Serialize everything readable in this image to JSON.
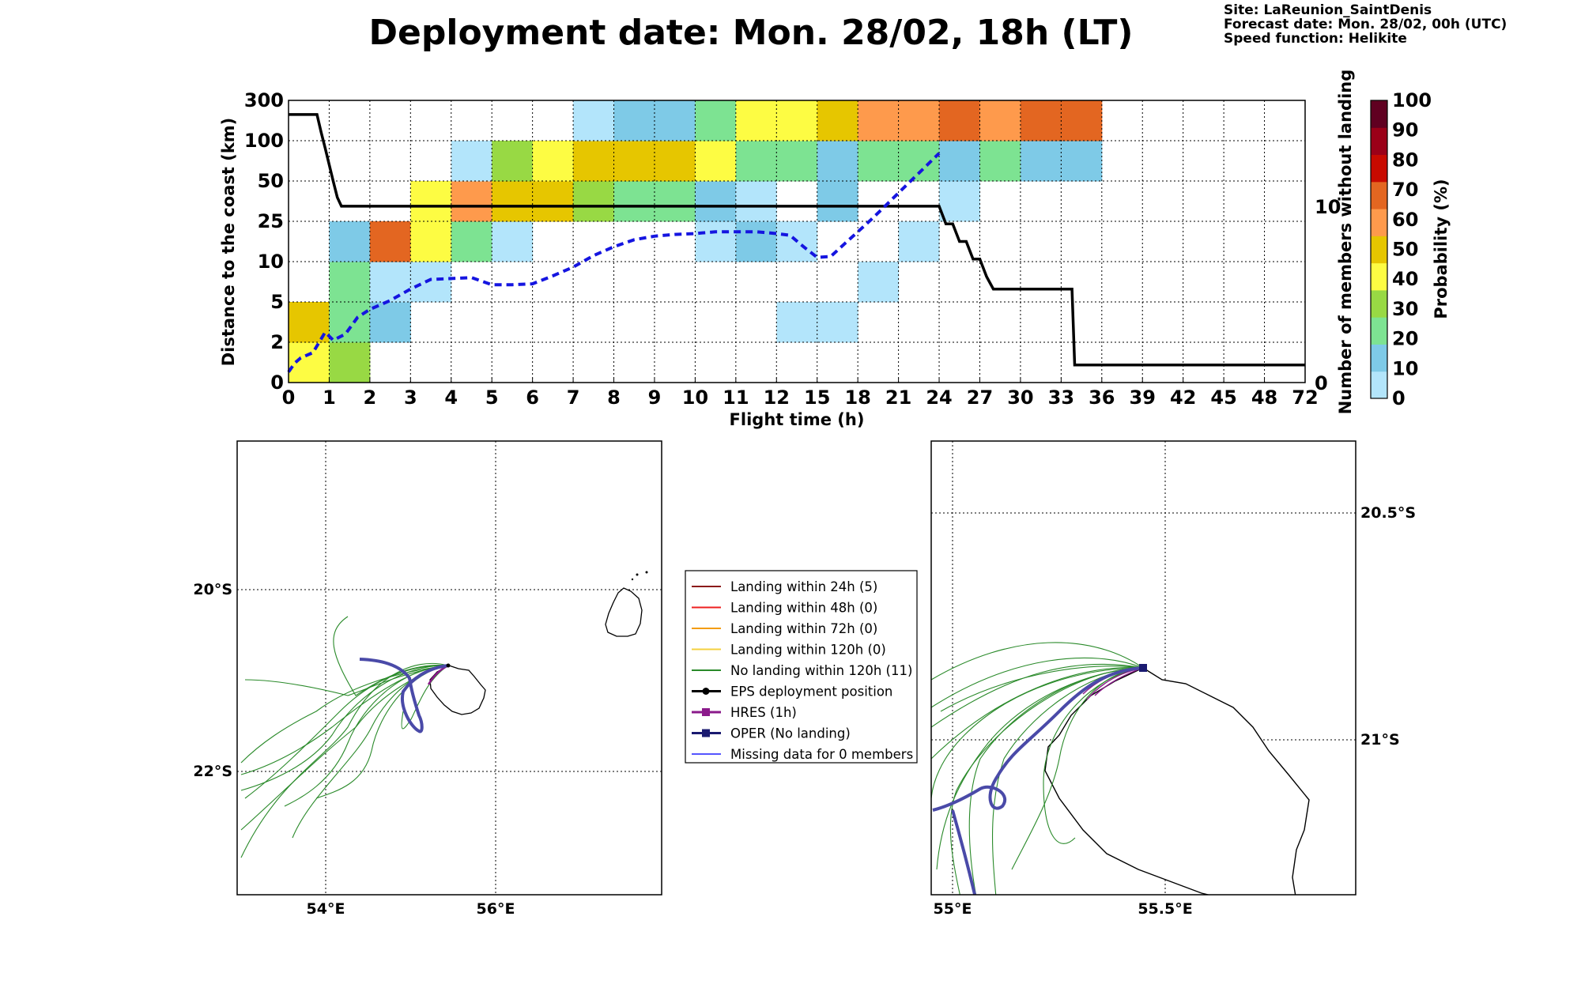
{
  "header": {
    "title": "Deployment date: Mon. 28/02, 18h (LT)",
    "site": "Site: LaReunion_SaintDenis",
    "forecast": "Forecast date: Mon. 28/02, 00h (UTC)",
    "speed": "Speed function: Helikite"
  },
  "chart_data": [
    {
      "type": "heatmap",
      "xlabel": "Flight time (h)",
      "ylabel": "Distance to the coast (km)",
      "y2label": "Number of members without landing",
      "colorbar_label": "Probability (%)",
      "x_ticks": [
        "0",
        "1",
        "2",
        "3",
        "4",
        "5",
        "6",
        "7",
        "8",
        "9",
        "10",
        "11",
        "12",
        "15",
        "18",
        "21",
        "24",
        "27",
        "30",
        "33",
        "36",
        "39",
        "42",
        "45",
        "48",
        "72"
      ],
      "y_ticks": [
        "0",
        "2",
        "5",
        "10",
        "25",
        "50",
        "100",
        "300"
      ],
      "y2_ticks": [
        "0",
        "10"
      ],
      "y2lim": [
        0,
        16
      ],
      "colorbar_ticks": [
        "0",
        "10",
        "20",
        "30",
        "40",
        "50",
        "60",
        "70",
        "80",
        "90",
        "100"
      ],
      "colorbar_colors": [
        "#b3e5fb",
        "#7ecae7",
        "#7de392",
        "#98d944",
        "#fdfc43",
        "#e6c600",
        "#fe9a4c",
        "#e36621",
        "#c80a00",
        "#9b0018",
        "#600021"
      ],
      "cells": [
        {
          "x": 0,
          "y": 0,
          "p": 40
        },
        {
          "x": 0,
          "y": 1,
          "p": 50
        },
        {
          "x": 1,
          "y": 0,
          "p": 30
        },
        {
          "x": 1,
          "y": 1,
          "p": 20
        },
        {
          "x": 1,
          "y": 2,
          "p": 20
        },
        {
          "x": 1,
          "y": 3,
          "p": 10
        },
        {
          "x": 2,
          "y": 1,
          "p": 10
        },
        {
          "x": 2,
          "y": 2,
          "p": 0
        },
        {
          "x": 2,
          "y": 3,
          "p": 70
        },
        {
          "x": 3,
          "y": 2,
          "p": 0
        },
        {
          "x": 3,
          "y": 3,
          "p": 40
        },
        {
          "x": 3,
          "y": 4,
          "p": 40
        },
        {
          "x": 4,
          "y": 3,
          "p": 20
        },
        {
          "x": 4,
          "y": 4,
          "p": 60
        },
        {
          "x": 4,
          "y": 5,
          "p": 0
        },
        {
          "x": 5,
          "y": 3,
          "p": 0
        },
        {
          "x": 5,
          "y": 4,
          "p": 50
        },
        {
          "x": 5,
          "y": 5,
          "p": 30
        },
        {
          "x": 6,
          "y": 4,
          "p": 50
        },
        {
          "x": 6,
          "y": 5,
          "p": 40
        },
        {
          "x": 7,
          "y": 4,
          "p": 30
        },
        {
          "x": 7,
          "y": 5,
          "p": 50
        },
        {
          "x": 7,
          "y": 6,
          "p": 0
        },
        {
          "x": 8,
          "y": 4,
          "p": 20
        },
        {
          "x": 8,
          "y": 5,
          "p": 50
        },
        {
          "x": 8,
          "y": 6,
          "p": 10
        },
        {
          "x": 9,
          "y": 4,
          "p": 20
        },
        {
          "x": 9,
          "y": 5,
          "p": 50
        },
        {
          "x": 9,
          "y": 6,
          "p": 10
        },
        {
          "x": 10,
          "y": 3,
          "p": 0
        },
        {
          "x": 10,
          "y": 4,
          "p": 10
        },
        {
          "x": 10,
          "y": 5,
          "p": 40
        },
        {
          "x": 10,
          "y": 6,
          "p": 20
        },
        {
          "x": 11,
          "y": 3,
          "p": 10
        },
        {
          "x": 11,
          "y": 4,
          "p": 0
        },
        {
          "x": 11,
          "y": 5,
          "p": 20
        },
        {
          "x": 11,
          "y": 6,
          "p": 40
        },
        {
          "x": 12,
          "y": 1,
          "p": 0
        },
        {
          "x": 12,
          "y": 3,
          "p": 0
        },
        {
          "x": 12,
          "y": 5,
          "p": 20
        },
        {
          "x": 12,
          "y": 6,
          "p": 40
        },
        {
          "x": 13,
          "y": 1,
          "p": 0
        },
        {
          "x": 13,
          "y": 4,
          "p": 10
        },
        {
          "x": 13,
          "y": 5,
          "p": 10
        },
        {
          "x": 13,
          "y": 6,
          "p": 50
        },
        {
          "x": 14,
          "y": 2,
          "p": 0
        },
        {
          "x": 14,
          "y": 5,
          "p": 20
        },
        {
          "x": 14,
          "y": 6,
          "p": 60
        },
        {
          "x": 15,
          "y": 3,
          "p": 0
        },
        {
          "x": 15,
          "y": 5,
          "p": 20
        },
        {
          "x": 15,
          "y": 6,
          "p": 60
        },
        {
          "x": 16,
          "y": 4,
          "p": 0
        },
        {
          "x": 16,
          "y": 5,
          "p": 10
        },
        {
          "x": 16,
          "y": 6,
          "p": 70
        },
        {
          "x": 17,
          "y": 5,
          "p": 20
        },
        {
          "x": 17,
          "y": 6,
          "p": 60
        },
        {
          "x": 18,
          "y": 5,
          "p": 10
        },
        {
          "x": 18,
          "y": 6,
          "p": 70
        },
        {
          "x": 19,
          "y": 5,
          "p": 10
        },
        {
          "x": 19,
          "y": 6,
          "p": 70
        }
      ],
      "series": [
        {
          "name": "members without landing",
          "style": "step",
          "x": [
            0,
            0.7,
            0.8,
            0.9,
            1.1,
            1.2,
            1.3,
            24,
            24.5,
            25,
            25.5,
            26,
            26.5,
            27,
            27.5,
            28,
            33.8,
            34,
            72
          ],
          "y": [
            15.2,
            15.2,
            14.2,
            13.3,
            11.4,
            10.5,
            10,
            10,
            9,
            9,
            8,
            8,
            7,
            7,
            6,
            5.3,
            5.3,
            1,
            1
          ]
        },
        {
          "name": "mean distance",
          "style": "dashed",
          "x": [
            0,
            0.15,
            0.3,
            0.6,
            0.9,
            1.1,
            1.4,
            1.7,
            2,
            2.5,
            3,
            3.5,
            4,
            4.5,
            5,
            5.5,
            6,
            6.5,
            7,
            7.5,
            8,
            8.5,
            9,
            9.5,
            10,
            10.5,
            11,
            11.5,
            12,
            13,
            14,
            15,
            16,
            17,
            18,
            19,
            20,
            21,
            22,
            23,
            24
          ],
          "y": [
            1.2,
            2.2,
            2.8,
            3.4,
            5.7,
            4.8,
            5.5,
            7.4,
            8.3,
            9.3,
            10.6,
            11.7,
            11.8,
            11.9,
            11.1,
            11.1,
            11.2,
            12.1,
            13.1,
            14.4,
            15.4,
            16.2,
            16.6,
            16.8,
            16.9,
            17.1,
            17.1,
            17.1,
            16.9,
            16.7,
            15.4,
            14.2,
            14.3,
            15.7,
            17.1,
            18.5,
            20,
            21.5,
            23,
            24.5,
            26
          ]
        }
      ]
    }
  ],
  "maps": {
    "left": {
      "lat_labels": [
        "20°S",
        "22°S"
      ],
      "lon_labels": [
        "54°E",
        "56°E"
      ]
    },
    "right": {
      "lat_labels": [
        "20.5°S",
        "21°S"
      ],
      "lon_labels": [
        "55°E",
        "55.5°E"
      ]
    }
  },
  "legend": [
    {
      "label": "Landing within 24h (5)",
      "color": "#8b1a1a",
      "marker": "none"
    },
    {
      "label": "Landing within 48h (0)",
      "color": "#ee2020",
      "marker": "none"
    },
    {
      "label": "Landing within 72h (0)",
      "color": "#f39c12",
      "marker": "none"
    },
    {
      "label": "Landing within 120h (0)",
      "color": "#f4d03f",
      "marker": "none"
    },
    {
      "label": "No landing within 120h (11)",
      "color": "#2a8a2a",
      "marker": "none"
    },
    {
      "label": "EPS deployment position",
      "color": "#000000",
      "marker": "circle"
    },
    {
      "label": "HRES (1h)",
      "color": "#8b1a8b",
      "marker": "square"
    },
    {
      "label": "OPER (No landing)",
      "color": "#1a1a70",
      "marker": "square"
    },
    {
      "label": "Missing data for 0 members",
      "color": "#5555ff",
      "marker": "none"
    }
  ]
}
